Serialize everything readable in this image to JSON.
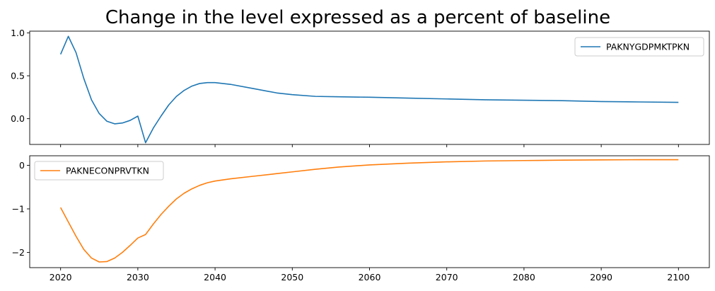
{
  "chart_data": [
    {
      "type": "line",
      "title": "Change in the level expressed as a percent of baseline",
      "xlabel": "",
      "ylabel": "",
      "xlim": [
        2016,
        2104
      ],
      "ylim": [
        -0.3,
        1.02
      ],
      "yticks": [
        -0.0,
        0.5,
        1.0
      ],
      "ytick_labels": [
        "0.0",
        "0.5",
        "1.0"
      ],
      "xticks": [
        2020,
        2030,
        2040,
        2050,
        2060,
        2070,
        2080,
        2090,
        2100
      ],
      "grid": false,
      "legend": "upper-right",
      "series": [
        {
          "name": "PAKNYGDPMKTPKN",
          "color": "#1f77b4",
          "x": [
            2020,
            2021,
            2022,
            2023,
            2024,
            2025,
            2026,
            2027,
            2028,
            2029,
            2030,
            2031,
            2032,
            2033,
            2034,
            2035,
            2036,
            2037,
            2038,
            2039,
            2040,
            2042,
            2045,
            2048,
            2050,
            2053,
            2056,
            2060,
            2065,
            2070,
            2075,
            2080,
            2085,
            2090,
            2095,
            2100
          ],
          "values": [
            0.75,
            0.96,
            0.77,
            0.47,
            0.22,
            0.06,
            -0.03,
            -0.06,
            -0.05,
            -0.02,
            0.03,
            -0.28,
            -0.11,
            0.03,
            0.16,
            0.26,
            0.33,
            0.38,
            0.41,
            0.42,
            0.42,
            0.4,
            0.35,
            0.3,
            0.28,
            0.26,
            0.255,
            0.25,
            0.24,
            0.23,
            0.22,
            0.215,
            0.21,
            0.2,
            0.195,
            0.19
          ]
        }
      ]
    },
    {
      "type": "line",
      "xlabel": "",
      "ylabel": "",
      "xlim": [
        2016,
        2104
      ],
      "ylim": [
        -2.35,
        0.22
      ],
      "yticks": [
        -2,
        -1,
        0
      ],
      "ytick_labels": [
        "−2",
        "−1",
        "0"
      ],
      "xticks": [
        2020,
        2030,
        2040,
        2050,
        2060,
        2070,
        2080,
        2090,
        2100
      ],
      "xtick_labels": [
        "2020",
        "2030",
        "2040",
        "2050",
        "2060",
        "2070",
        "2080",
        "2090",
        "2100"
      ],
      "grid": false,
      "legend": "upper-left",
      "series": [
        {
          "name": "PAKNECONPRVTKN",
          "color": "#ff7f0e",
          "x": [
            2020,
            2021,
            2022,
            2023,
            2024,
            2025,
            2026,
            2027,
            2028,
            2029,
            2030,
            2031,
            2032,
            2033,
            2034,
            2035,
            2036,
            2037,
            2038,
            2039,
            2040,
            2042,
            2045,
            2048,
            2050,
            2053,
            2056,
            2060,
            2065,
            2070,
            2075,
            2080,
            2085,
            2090,
            2095,
            2100
          ],
          "values": [
            -0.97,
            -1.3,
            -1.63,
            -1.93,
            -2.13,
            -2.22,
            -2.21,
            -2.13,
            -2.0,
            -1.84,
            -1.67,
            -1.59,
            -1.35,
            -1.13,
            -0.94,
            -0.77,
            -0.64,
            -0.54,
            -0.46,
            -0.4,
            -0.36,
            -0.31,
            -0.25,
            -0.19,
            -0.15,
            -0.09,
            -0.04,
            0.01,
            0.05,
            0.08,
            0.1,
            0.11,
            0.12,
            0.125,
            0.13,
            0.13
          ]
        }
      ]
    }
  ]
}
